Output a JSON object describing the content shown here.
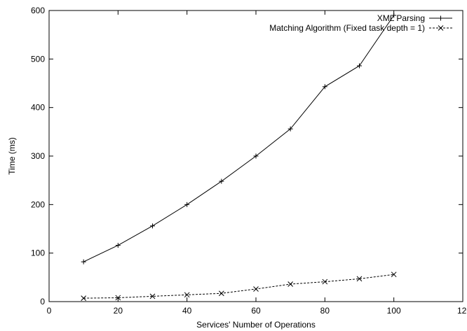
{
  "chart_data": {
    "type": "line",
    "title": "",
    "xlabel": "Services' Number of Operations",
    "ylabel": "Time (ms)",
    "xlim": [
      0,
      120
    ],
    "ylim": [
      0,
      600
    ],
    "xticks": [
      0,
      20,
      40,
      60,
      80,
      100,
      120
    ],
    "yticks": [
      0,
      100,
      200,
      300,
      400,
      500,
      600
    ],
    "grid": false,
    "legend_position": "top-right",
    "x": [
      10,
      20,
      30,
      40,
      50,
      60,
      70,
      80,
      90,
      100
    ],
    "series": [
      {
        "name": "XML Parsing",
        "marker": "plus",
        "line_style": "solid",
        "color": "#000000",
        "values": [
          82,
          116,
          156,
          200,
          248,
          300,
          356,
          443,
          486,
          590
        ]
      },
      {
        "name": "Matching Algorithm (Fixed task depth = 1)",
        "marker": "cross",
        "line_style": "dashed",
        "color": "#000000",
        "values": [
          7,
          8,
          11,
          14,
          17,
          26,
          36,
          41,
          47,
          56
        ]
      }
    ]
  }
}
